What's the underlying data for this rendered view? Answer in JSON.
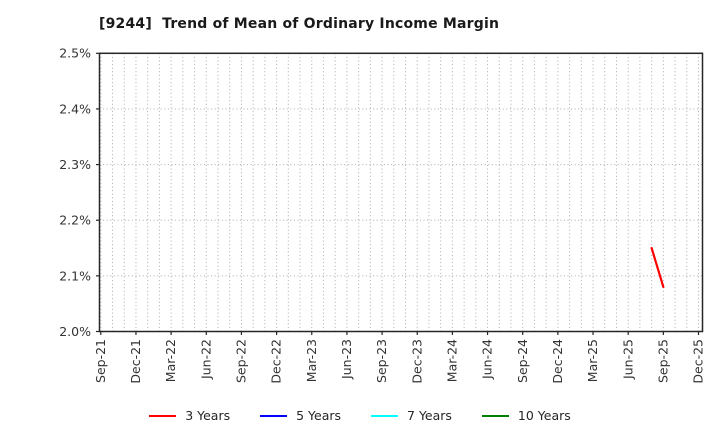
{
  "chart": {
    "title": "[9244]  Trend of Mean of Ordinary Income Margin"
  },
  "legend": {
    "items": [
      {
        "label": "3 Years",
        "color": "#ff0000"
      },
      {
        "label": "5 Years",
        "color": "#0000ff"
      },
      {
        "label": "7 Years",
        "color": "#00ffff"
      },
      {
        "label": "10 Years",
        "color": "#008000"
      }
    ]
  },
  "chart_data": {
    "type": "line",
    "title": "[9244]  Trend of Mean of Ordinary Income Margin",
    "xlabel": "",
    "ylabel": "",
    "ylim": [
      2.0,
      2.5
    ],
    "yticks": [
      {
        "value": 2.0,
        "label": "2.0%"
      },
      {
        "value": 2.1,
        "label": "2.1%"
      },
      {
        "value": 2.2,
        "label": "2.2%"
      },
      {
        "value": 2.3,
        "label": "2.3%"
      },
      {
        "value": 2.4,
        "label": "2.4%"
      },
      {
        "value": 2.5,
        "label": "2.5%"
      }
    ],
    "x_month_count": 52,
    "x_range_months": [
      "Sep-21",
      "Dec-25"
    ],
    "label_every_n_months": 3,
    "x_tick_labels": [
      "Sep-21",
      "Dec-21",
      "Mar-22",
      "Jun-22",
      "Sep-22",
      "Dec-22",
      "Mar-23",
      "Jun-23",
      "Sep-23",
      "Dec-23",
      "Mar-24",
      "Jun-24",
      "Sep-24",
      "Dec-24",
      "Mar-25",
      "Jun-25",
      "Sep-25",
      "Dec-25"
    ],
    "grid": {
      "vertical": "monthly dotted",
      "horizontal": "every 0.1% dotted",
      "color": "#ababab"
    },
    "legend_position": "bottom center",
    "value_unit": "%",
    "series": [
      {
        "name": "3 Years",
        "color": "#ff0000",
        "points": [
          {
            "month": "Aug-25",
            "month_index": 47,
            "value": 2.15
          },
          {
            "month": "Sep-25",
            "month_index": 48,
            "value": 2.08
          }
        ]
      },
      {
        "name": "5 Years",
        "color": "#0000ff",
        "points": []
      },
      {
        "name": "7 Years",
        "color": "#00ffff",
        "points": []
      },
      {
        "name": "10 Years",
        "color": "#008000",
        "points": []
      }
    ]
  }
}
